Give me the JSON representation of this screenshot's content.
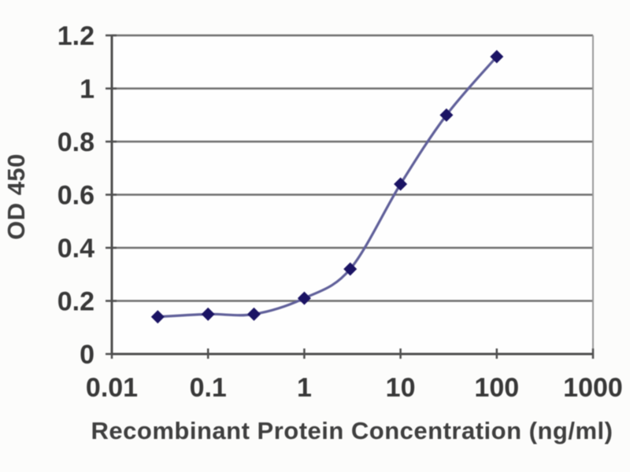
{
  "chart_data": {
    "type": "line",
    "title": "",
    "xlabel": "Recombinant Protein Concentration (ng/ml)",
    "ylabel": "OD 450",
    "x_scale": "log",
    "xlim": [
      0.01,
      1000
    ],
    "ylim": [
      0,
      1.2
    ],
    "x_ticks": [
      0.01,
      0.1,
      1,
      10,
      100,
      1000
    ],
    "x_tick_labels": [
      "0.01",
      "0.1",
      "1",
      "10",
      "100",
      "1000"
    ],
    "y_ticks": [
      0,
      0.2,
      0.4,
      0.6,
      0.8,
      1,
      1.2
    ],
    "y_tick_labels": [
      "0",
      "0.2",
      "0.4",
      "0.6",
      "0.8",
      "1",
      "1.2"
    ],
    "grid": "horizontal",
    "legend": "none",
    "series": [
      {
        "x": [
          0.03,
          0.1,
          0.3,
          1,
          3,
          10,
          30,
          100
        ],
        "y": [
          0.14,
          0.15,
          0.15,
          0.21,
          0.32,
          0.64,
          0.9,
          1.12
        ],
        "marker": "diamond",
        "line_smooth": true
      }
    ],
    "style": {
      "line_color": "#60609a",
      "marker_color": "#1b1464",
      "grid_color": "#6e6e6e",
      "axis_color": "#4f4f4f",
      "border_color": "#9a9a9a",
      "tick_text_color": "#383838",
      "plot_background": "#fefefe",
      "page_background": "#fcfcfb"
    }
  }
}
